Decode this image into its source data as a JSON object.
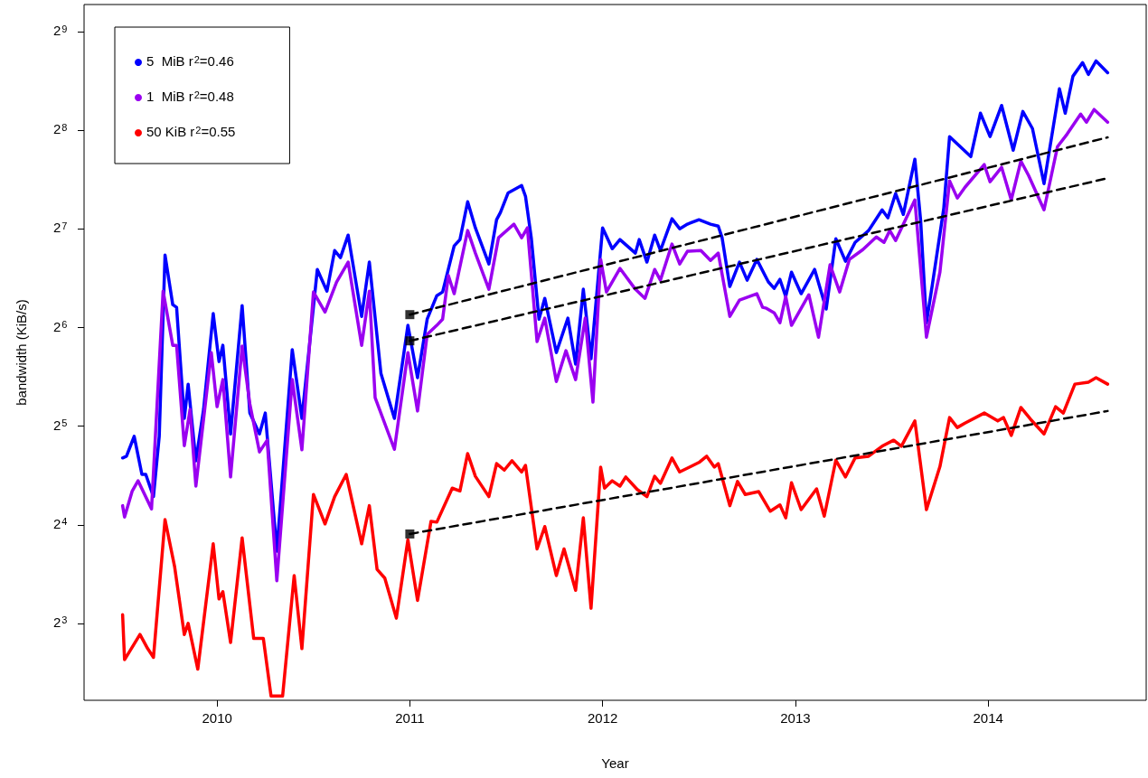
{
  "chart_data": {
    "type": "line",
    "xlabel": "Year",
    "ylabel": "bandwidth (KiB/s)",
    "xlim": [
      2009.31,
      2014.82
    ],
    "xticks": [
      2010,
      2011,
      2012,
      2013,
      2014
    ],
    "ylim": [
      4.66,
      620
    ],
    "log": "y",
    "yticks": [
      {
        "value": 8,
        "label": "2$^{3}$"
      },
      {
        "value": 16,
        "label": "2$^{4}$"
      },
      {
        "value": 32,
        "label": "2$^{5}$"
      },
      {
        "value": 64,
        "label": "2$^{6}$"
      },
      {
        "value": 128,
        "label": "2$^{7}$"
      },
      {
        "value": 256,
        "label": "2$^{8}$"
      },
      {
        "value": 512,
        "label": "2$^{9}$"
      }
    ],
    "grid": false,
    "legend": "top left",
    "series": [
      {
        "name": "5  MiB r$^{2}$=0.46",
        "color": "#0000ff",
        "x": [
          2009.51,
          2009.53,
          2009.57,
          2009.61,
          2009.63,
          2009.67,
          2009.7,
          2009.73,
          2009.77,
          2009.79,
          2009.83,
          2009.85,
          2009.89,
          2009.93,
          2009.98,
          2010.01,
          2010.03,
          2010.07,
          2010.13,
          2010.17,
          2010.22,
          2010.25,
          2010.31,
          2010.39,
          2010.44,
          2010.52,
          2010.57,
          2010.61,
          2010.64,
          2010.68,
          2010.75,
          2010.79,
          2010.85,
          2010.92,
          2010.99,
          2011.04,
          2011.09,
          2011.14,
          2011.17,
          2011.23,
          2011.26,
          2011.3,
          2011.34,
          2011.41,
          2011.45,
          2011.47,
          2011.51,
          2011.58,
          2011.6,
          2011.63,
          2011.67,
          2011.7,
          2011.76,
          2011.82,
          2011.86,
          2011.9,
          2011.94,
          2012.0,
          2012.05,
          2012.09,
          2012.17,
          2012.19,
          2012.23,
          2012.27,
          2012.3,
          2012.36,
          2012.4,
          2012.44,
          2012.5,
          2012.56,
          2012.6,
          2012.62,
          2012.66,
          2012.71,
          2012.75,
          2012.8,
          2012.86,
          2012.89,
          2012.92,
          2012.95,
          2012.98,
          2013.03,
          2013.1,
          2013.16,
          2013.21,
          2013.26,
          2013.31,
          2013.38,
          2013.45,
          2013.48,
          2013.52,
          2013.56,
          2013.62,
          2013.65,
          2013.68,
          2013.71,
          2013.77,
          2013.8,
          2013.91,
          2013.96,
          2014.01,
          2014.07,
          2014.13,
          2014.18,
          2014.23,
          2014.29,
          2014.37,
          2014.4,
          2014.44,
          2014.49,
          2014.52,
          2014.56,
          2014.62
        ],
        "values": [
          25.6,
          25.9,
          29.8,
          22.8,
          22.8,
          19.5,
          29.8,
          106.6,
          75.2,
          73.8,
          33.8,
          43.0,
          25.1,
          36.0,
          70.6,
          50.4,
          56.5,
          30.3,
          74.7,
          35.1,
          30.3,
          35.1,
          13.3,
          54.8,
          33.8,
          96.3,
          82.7,
          110,
          104.6,
          122.6,
          69.2,
          101.4,
          46.4,
          33.8,
          65.0,
          45.0,
          67.9,
          80.1,
          82.2,
          113.6,
          118.8,
          155,
          129,
          100.1,
          136.6,
          143.7,
          165,
          173.7,
          161,
          120.3,
          67.9,
          78.6,
          53.7,
          68.4,
          49.5,
          83.8,
          51.4,
          129,
          111.4,
          118.8,
          108.0,
          118.8,
          101.4,
          122.6,
          110,
          137.5,
          128.2,
          132.4,
          136.6,
          132.4,
          130.6,
          120.3,
          85.4,
          101.4,
          89.3,
          103.3,
          88.2,
          84.3,
          89.8,
          79.6,
          94.5,
          81.2,
          96.3,
          72.9,
          119.5,
          102.0,
          116.5,
          126.6,
          146.4,
          138.4,
          164.2,
          141.8,
          209,
          135.7,
          66.2,
          86.0,
          148.2,
          245,
          212.9,
          288.8,
          245,
          305,
          222.7,
          292.4,
          259.3,
          176.1,
          342.8,
          288.8,
          374.5,
          412,
          379.4,
          417,
          384
        ]
      },
      {
        "name": "1  MiB r$^{2}$=0.48",
        "color": "#9a00f0",
        "x": [
          2009.51,
          2009.52,
          2009.56,
          2009.59,
          2009.66,
          2009.72,
          2009.77,
          2009.79,
          2009.83,
          2009.86,
          2009.89,
          2009.97,
          2010.0,
          2010.03,
          2010.07,
          2010.13,
          2010.17,
          2010.22,
          2010.26,
          2010.31,
          2010.39,
          2010.44,
          2010.5,
          2010.56,
          2010.62,
          2010.68,
          2010.75,
          2010.79,
          2010.82,
          2010.92,
          2010.99,
          2011.04,
          2011.09,
          2011.14,
          2011.17,
          2011.2,
          2011.23,
          2011.3,
          2011.34,
          2011.41,
          2011.46,
          2011.54,
          2011.58,
          2011.61,
          2011.66,
          2011.7,
          2011.76,
          2011.81,
          2011.86,
          2011.91,
          2011.95,
          2011.99,
          2012.02,
          2012.09,
          2012.17,
          2012.22,
          2012.27,
          2012.3,
          2012.36,
          2012.4,
          2012.44,
          2012.51,
          2012.56,
          2012.6,
          2012.66,
          2012.71,
          2012.8,
          2012.83,
          2012.85,
          2012.89,
          2012.92,
          2012.95,
          2012.98,
          2013.07,
          2013.12,
          2013.18,
          2013.23,
          2013.28,
          2013.35,
          2013.42,
          2013.46,
          2013.49,
          2013.52,
          2013.62,
          2013.68,
          2013.75,
          2013.8,
          2013.84,
          2013.88,
          2013.98,
          2014.01,
          2014.07,
          2014.12,
          2014.17,
          2014.21,
          2014.29,
          2014.36,
          2014.41,
          2014.48,
          2014.51,
          2014.55,
          2014.62
        ],
        "values": [
          18.3,
          16.9,
          20.3,
          21.8,
          17.9,
          82.7,
          56.5,
          56.5,
          27.9,
          36.0,
          21.0,
          53.7,
          36.7,
          44.4,
          22.4,
          56.2,
          37.4,
          26.7,
          29.0,
          10.8,
          44.4,
          27.1,
          82.2,
          71.4,
          88.2,
          101.4,
          56.5,
          82.7,
          39.1,
          27.2,
          53.7,
          35.6,
          61.0,
          65.0,
          67.9,
          92.2,
          81.2,
          126.6,
          108.0,
          83.8,
          120.3,
          132.4,
          120.3,
          129,
          58.0,
          68.4,
          43.8,
          54.4,
          44.4,
          68.4,
          37.9,
          103.3,
          82.2,
          97.0,
          83.8,
          78.6,
          96.3,
          89.3,
          115.1,
          100.1,
          109.4,
          110,
          102.6,
          108.0,
          69.2,
          77.6,
          81.2,
          73.8,
          73.3,
          71.0,
          66.2,
          79.6,
          65.0,
          80.6,
          59.8,
          99.5,
          82.2,
          103.3,
          110.7,
          121.0,
          116.5,
          126.6,
          118.0,
          157,
          59.8,
          94.5,
          179.5,
          159.1,
          171.6,
          201.2,
          178.3,
          197.4,
          157,
          206.3,
          186.4,
          146.4,
          228.4,
          249.5,
          287,
          271.1,
          296.4,
          271.1
        ]
      },
      {
        "name": "50 KiB r$^{2}$=0.55",
        "color": "#ff0000",
        "x": [
          2009.51,
          2009.52,
          2009.6,
          2009.64,
          2009.67,
          2009.73,
          2009.78,
          2009.83,
          2009.85,
          2009.9,
          2009.98,
          2010.01,
          2010.03,
          2010.07,
          2010.13,
          2010.19,
          2010.24,
          2010.28,
          2010.34,
          2010.4,
          2010.44,
          2010.5,
          2010.56,
          2010.61,
          2010.67,
          2010.75,
          2010.79,
          2010.83,
          2010.87,
          2010.93,
          2010.99,
          2011.04,
          2011.11,
          2011.14,
          2011.22,
          2011.26,
          2011.3,
          2011.34,
          2011.41,
          2011.45,
          2011.49,
          2011.53,
          2011.58,
          2011.6,
          2011.66,
          2011.7,
          2011.76,
          2011.8,
          2011.86,
          2011.9,
          2011.94,
          2011.99,
          2012.01,
          2012.05,
          2012.09,
          2012.12,
          2012.18,
          2012.23,
          2012.27,
          2012.3,
          2012.36,
          2012.4,
          2012.5,
          2012.54,
          2012.58,
          2012.6,
          2012.66,
          2012.7,
          2012.74,
          2012.81,
          2012.87,
          2012.92,
          2012.95,
          2012.98,
          2013.03,
          2013.11,
          2013.15,
          2013.21,
          2013.26,
          2013.31,
          2013.38,
          2013.45,
          2013.51,
          2013.55,
          2013.62,
          2013.68,
          2013.75,
          2013.8,
          2013.84,
          2013.88,
          2013.98,
          2014.05,
          2014.08,
          2014.12,
          2014.17,
          2014.22,
          2014.29,
          2014.35,
          2014.39,
          2014.45,
          2014.52,
          2014.56,
          2014.62
        ],
        "values": [
          8.5,
          6.2,
          7.4,
          6.7,
          6.3,
          16.6,
          11.9,
          7.4,
          8.0,
          5.8,
          14.0,
          9.5,
          10.0,
          7.0,
          14.6,
          7.2,
          7.2,
          4.8,
          4.8,
          11.2,
          6.7,
          19.8,
          16.1,
          19.5,
          22.8,
          14.0,
          18.3,
          11.7,
          11.0,
          8.3,
          14.4,
          9.4,
          16.4,
          16.3,
          20.7,
          20.3,
          26.4,
          22.5,
          19.5,
          24.6,
          23.5,
          25.1,
          23.2,
          24.3,
          13.5,
          15.8,
          11.2,
          13.5,
          10.1,
          16.8,
          8.9,
          24.0,
          20.7,
          21.8,
          21.0,
          22.4,
          20.5,
          19.5,
          22.5,
          21.4,
          25.6,
          23.2,
          24.8,
          25.9,
          24.0,
          24.6,
          18.3,
          21.7,
          19.8,
          20.2,
          17.6,
          18.4,
          16.8,
          21.5,
          17.8,
          20.6,
          17.0,
          25.2,
          22.4,
          25.6,
          25.9,
          27.8,
          29.0,
          27.8,
          33.2,
          17.8,
          24.1,
          34.0,
          31.7,
          32.7,
          35.1,
          33.2,
          34.0,
          30.0,
          36.5,
          33.6,
          30.3,
          36.7,
          35.1,
          43.0,
          43.6,
          45.0,
          43.0
        ]
      },
      {
        "type": "line",
        "line_style": "dashed",
        "color": "#000000",
        "x": [
          2011.0,
          2014.62
        ],
        "values": [
          70.1,
          243.7
        ]
      },
      {
        "type": "line",
        "line_style": "dashed",
        "color": "#000000",
        "x": [
          2011.0,
          2014.62
        ],
        "values": [
          58.3,
          182.9
        ]
      },
      {
        "type": "line",
        "line_style": "dashed",
        "color": "#000000",
        "x": [
          2011.0,
          2014.62
        ],
        "values": [
          15.0,
          35.6
        ]
      },
      {
        "type": "scatter",
        "marker": "square",
        "color": "#000000",
        "x": [
          2011.0,
          2011.0,
          2011.0
        ],
        "values": [
          70.1,
          58.3,
          15.0
        ]
      }
    ]
  }
}
